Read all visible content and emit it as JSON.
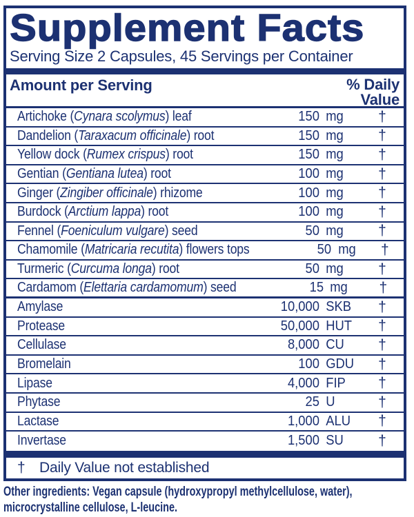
{
  "colors": {
    "navy": "#1c3172",
    "background": "#ffffff"
  },
  "header": {
    "title": "Supplement Facts",
    "serving_line": "Serving Size 2 Capsules, 45 Servings per Container",
    "amount_label": "Amount per Serving",
    "daily_value_line1": "% Daily",
    "daily_value_line2": "Value"
  },
  "rows": [
    {
      "prefix": "Artichoke (",
      "latin": "Cynara scolymus",
      "suffix": ") leaf",
      "amount": "150",
      "unit": "mg",
      "dv": "†",
      "section_end": false
    },
    {
      "prefix": "Dandelion (",
      "latin": "Taraxacum officinale",
      "suffix": ") root",
      "amount": "150",
      "unit": "mg",
      "dv": "†",
      "section_end": false
    },
    {
      "prefix": "Yellow dock (",
      "latin": "Rumex crispus",
      "suffix": ") root",
      "amount": "150",
      "unit": "mg",
      "dv": "†",
      "section_end": false
    },
    {
      "prefix": "Gentian (",
      "latin": "Gentiana lutea",
      "suffix": ") root",
      "amount": "100",
      "unit": "mg",
      "dv": "†",
      "section_end": false
    },
    {
      "prefix": "Ginger (",
      "latin": "Zingiber officinale",
      "suffix": ") rhizome",
      "amount": "100",
      "unit": "mg",
      "dv": "†",
      "section_end": false
    },
    {
      "prefix": "Burdock (",
      "latin": "Arctium lappa",
      "suffix": ") root",
      "amount": "100",
      "unit": "mg",
      "dv": "†",
      "section_end": false
    },
    {
      "prefix": "Fennel (",
      "latin": "Foeniculum vulgare",
      "suffix": ") seed",
      "amount": "50",
      "unit": "mg",
      "dv": "†",
      "section_end": false
    },
    {
      "prefix": "Chamomile (",
      "latin": "Matricaria recutita",
      "suffix": ") flowers tops",
      "amount": "50",
      "unit": "mg",
      "dv": "†",
      "section_end": false
    },
    {
      "prefix": "Turmeric (",
      "latin": "Curcuma longa",
      "suffix": ") root",
      "amount": "50",
      "unit": "mg",
      "dv": "†",
      "section_end": false
    },
    {
      "prefix": "Cardamom (",
      "latin": "Elettaria cardamomum",
      "suffix": ") seed",
      "amount": "15",
      "unit": "mg",
      "dv": "†",
      "section_end": true
    },
    {
      "prefix": "Amylase",
      "latin": "",
      "suffix": "",
      "amount": "10,000",
      "unit": "SKB",
      "dv": "†",
      "section_end": false
    },
    {
      "prefix": "Protease",
      "latin": "",
      "suffix": "",
      "amount": "50,000",
      "unit": "HUT",
      "dv": "†",
      "section_end": false
    },
    {
      "prefix": "Cellulase",
      "latin": "",
      "suffix": "",
      "amount": "8,000",
      "unit": "CU",
      "dv": "†",
      "section_end": false
    },
    {
      "prefix": "Bromelain",
      "latin": "",
      "suffix": "",
      "amount": "100",
      "unit": "GDU",
      "dv": "†",
      "section_end": false
    },
    {
      "prefix": "Lipase",
      "latin": "",
      "suffix": "",
      "amount": "4,000",
      "unit": "FIP",
      "dv": "†",
      "section_end": false
    },
    {
      "prefix": "Phytase",
      "latin": "",
      "suffix": "",
      "amount": "25",
      "unit": "U",
      "dv": "†",
      "section_end": false
    },
    {
      "prefix": "Lactase",
      "latin": "",
      "suffix": "",
      "amount": "1,000",
      "unit": "ALU",
      "dv": "†",
      "section_end": false
    },
    {
      "prefix": "Invertase",
      "latin": "",
      "suffix": "",
      "amount": "1,500",
      "unit": "SU",
      "dv": "†",
      "section_end": false
    }
  ],
  "footnote": {
    "symbol": "†",
    "text": "Daily Value not established"
  },
  "other_ingredients": "Other ingredients: Vegan capsule (hydroxypropyl methylcellulose, water), microcrystalline cellulose, L-leucine."
}
